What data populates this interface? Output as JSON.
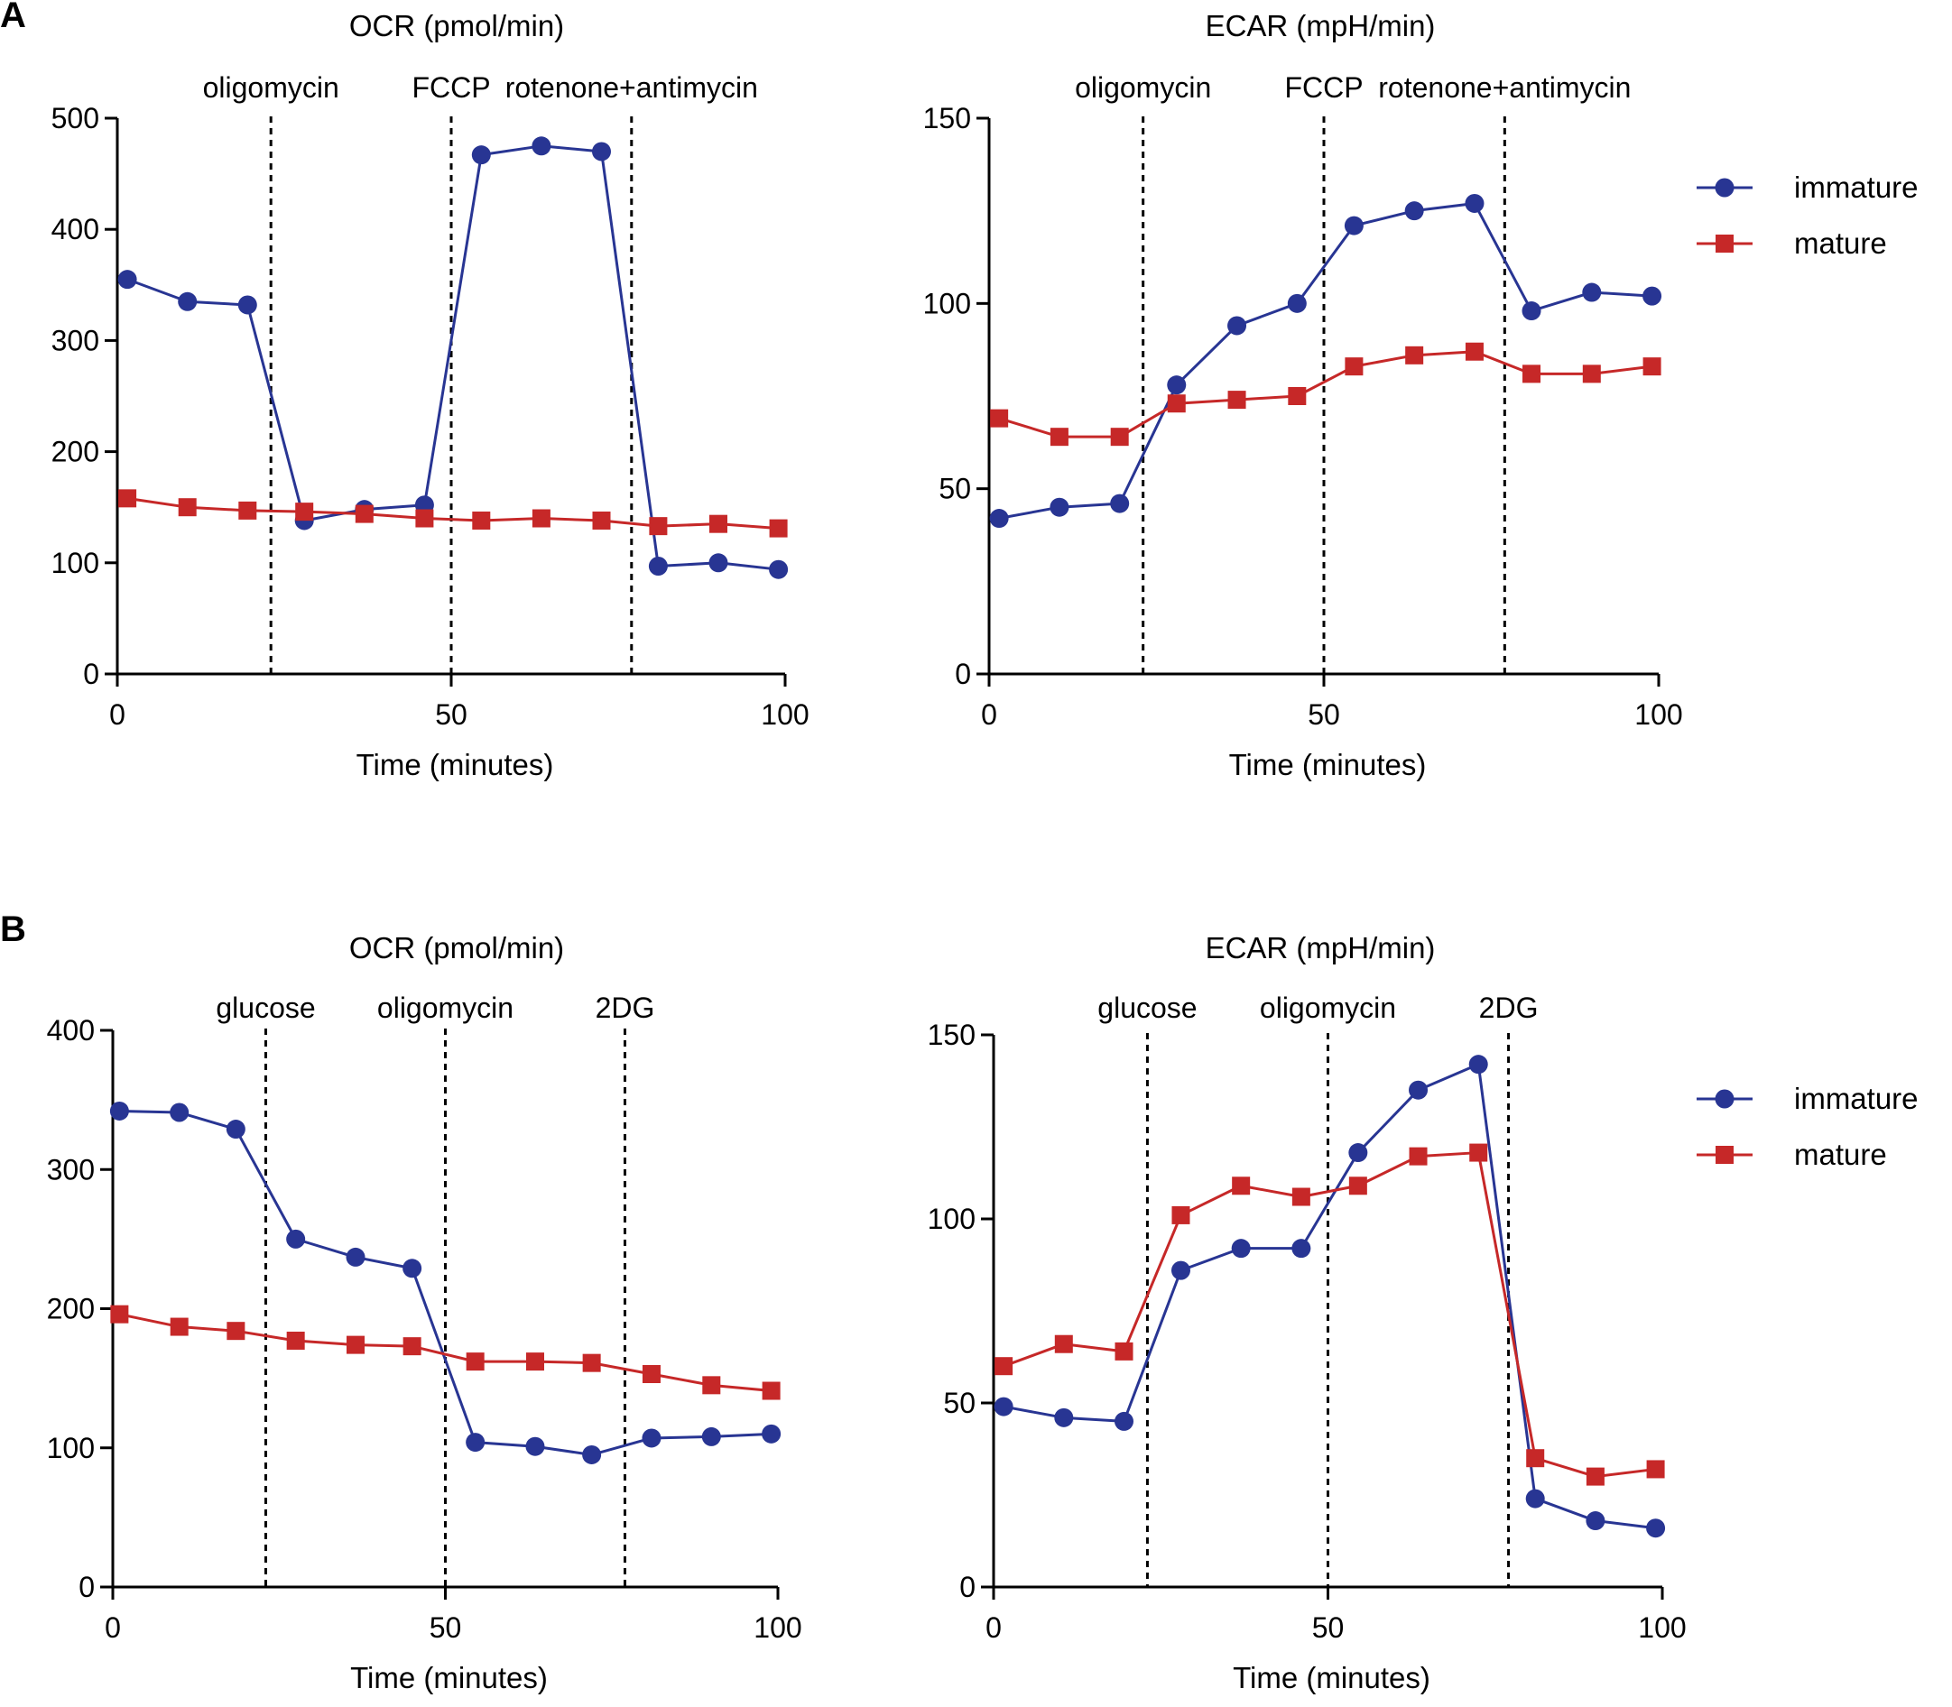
{
  "figure": {
    "panel_labels": [
      "A",
      "B"
    ]
  },
  "colors": {
    "immature": "#283593",
    "mature": "#c62828"
  },
  "chart_data": [
    {
      "id": "A-OCR",
      "type": "line",
      "panel": "A",
      "title": "OCR (pmol/min)",
      "xlabel": "Time (minutes)",
      "ylabel": "",
      "xlim": [
        0,
        100
      ],
      "ylim": [
        0,
        500
      ],
      "xticks": [
        0,
        50,
        100
      ],
      "yticks": [
        0,
        100,
        200,
        300,
        400,
        500
      ],
      "injections": [
        {
          "x": 23,
          "label": "oligomycin"
        },
        {
          "x": 50,
          "label": "FCCP"
        },
        {
          "x": 77,
          "label": "rotenone+antimycin"
        }
      ],
      "x": [
        1.5,
        10.5,
        19.5,
        28,
        37,
        46,
        54.5,
        63.5,
        72.5,
        81,
        90,
        99
      ],
      "series": [
        {
          "name": "immature",
          "marker": "circle",
          "color": "#283593",
          "values": [
            355,
            335,
            332,
            138,
            148,
            152,
            467,
            475,
            470,
            97,
            100,
            94
          ]
        },
        {
          "name": "mature",
          "marker": "square",
          "color": "#c62828",
          "values": [
            158,
            150,
            147,
            146,
            144,
            140,
            138,
            140,
            138,
            133,
            135,
            131
          ]
        }
      ],
      "legend": null
    },
    {
      "id": "A-ECAR",
      "type": "line",
      "panel": "A",
      "title": "ECAR (mpH/min)",
      "xlabel": "Time (minutes)",
      "ylabel": "",
      "xlim": [
        0,
        100
      ],
      "ylim": [
        0,
        150
      ],
      "xticks": [
        0,
        50,
        100
      ],
      "yticks": [
        0,
        50,
        100,
        150
      ],
      "injections": [
        {
          "x": 23,
          "label": "oligomycin"
        },
        {
          "x": 50,
          "label": "FCCP"
        },
        {
          "x": 77,
          "label": "rotenone+antimycin"
        }
      ],
      "x": [
        1.5,
        10.5,
        19.5,
        28,
        37,
        46,
        54.5,
        63.5,
        72.5,
        81,
        90,
        99
      ],
      "series": [
        {
          "name": "immature",
          "marker": "circle",
          "color": "#283593",
          "values": [
            42,
            45,
            46,
            78,
            94,
            100,
            121,
            125,
            127,
            98,
            103,
            102
          ]
        },
        {
          "name": "mature",
          "marker": "square",
          "color": "#c62828",
          "values": [
            69,
            64,
            64,
            73,
            74,
            75,
            83,
            86,
            87,
            81,
            81,
            83
          ]
        }
      ],
      "legend": {
        "position": "right",
        "entries": [
          "immature",
          "mature"
        ]
      }
    },
    {
      "id": "B-OCR",
      "type": "line",
      "panel": "B",
      "title": "OCR (pmol/min)",
      "xlabel": "Time (minutes)",
      "ylabel": "",
      "xlim": [
        0,
        100
      ],
      "ylim": [
        0,
        400
      ],
      "xticks": [
        0,
        50,
        100
      ],
      "yticks": [
        0,
        100,
        200,
        300,
        400
      ],
      "injections": [
        {
          "x": 23,
          "label": "glucose"
        },
        {
          "x": 50,
          "label": "oligomycin"
        },
        {
          "x": 77,
          "label": "2DG"
        }
      ],
      "x": [
        1,
        10,
        18.5,
        27.5,
        36.5,
        45,
        54.5,
        63.5,
        72,
        81,
        90,
        99
      ],
      "series": [
        {
          "name": "immature",
          "marker": "circle",
          "color": "#283593",
          "values": [
            342,
            341,
            329,
            250,
            237,
            229,
            104,
            101,
            95,
            107,
            108,
            110
          ]
        },
        {
          "name": "mature",
          "marker": "square",
          "color": "#c62828",
          "values": [
            196,
            187,
            184,
            177,
            174,
            173,
            162,
            162,
            161,
            153,
            145,
            141
          ]
        }
      ],
      "legend": null
    },
    {
      "id": "B-ECAR",
      "type": "line",
      "panel": "B",
      "title": "ECAR (mpH/min)",
      "xlabel": "Time (minutes)",
      "ylabel": "",
      "xlim": [
        0,
        100
      ],
      "ylim": [
        0,
        150
      ],
      "xticks": [
        0,
        50,
        100
      ],
      "yticks": [
        0,
        50,
        100,
        150
      ],
      "injections": [
        {
          "x": 23,
          "label": "glucose"
        },
        {
          "x": 50,
          "label": "oligomycin"
        },
        {
          "x": 77,
          "label": "2DG"
        }
      ],
      "x": [
        1.5,
        10.5,
        19.5,
        28,
        37,
        46,
        54.5,
        63.5,
        72.5,
        81,
        90,
        99
      ],
      "series": [
        {
          "name": "immature",
          "marker": "circle",
          "color": "#283593",
          "values": [
            49,
            46,
            45,
            86,
            92,
            92,
            118,
            135,
            142,
            24,
            18,
            16
          ]
        },
        {
          "name": "mature",
          "marker": "square",
          "color": "#c62828",
          "values": [
            60,
            66,
            64,
            101,
            109,
            106,
            109,
            117,
            118,
            35,
            30,
            32
          ]
        }
      ],
      "legend": {
        "position": "right",
        "entries": [
          "immature",
          "mature"
        ]
      }
    }
  ]
}
